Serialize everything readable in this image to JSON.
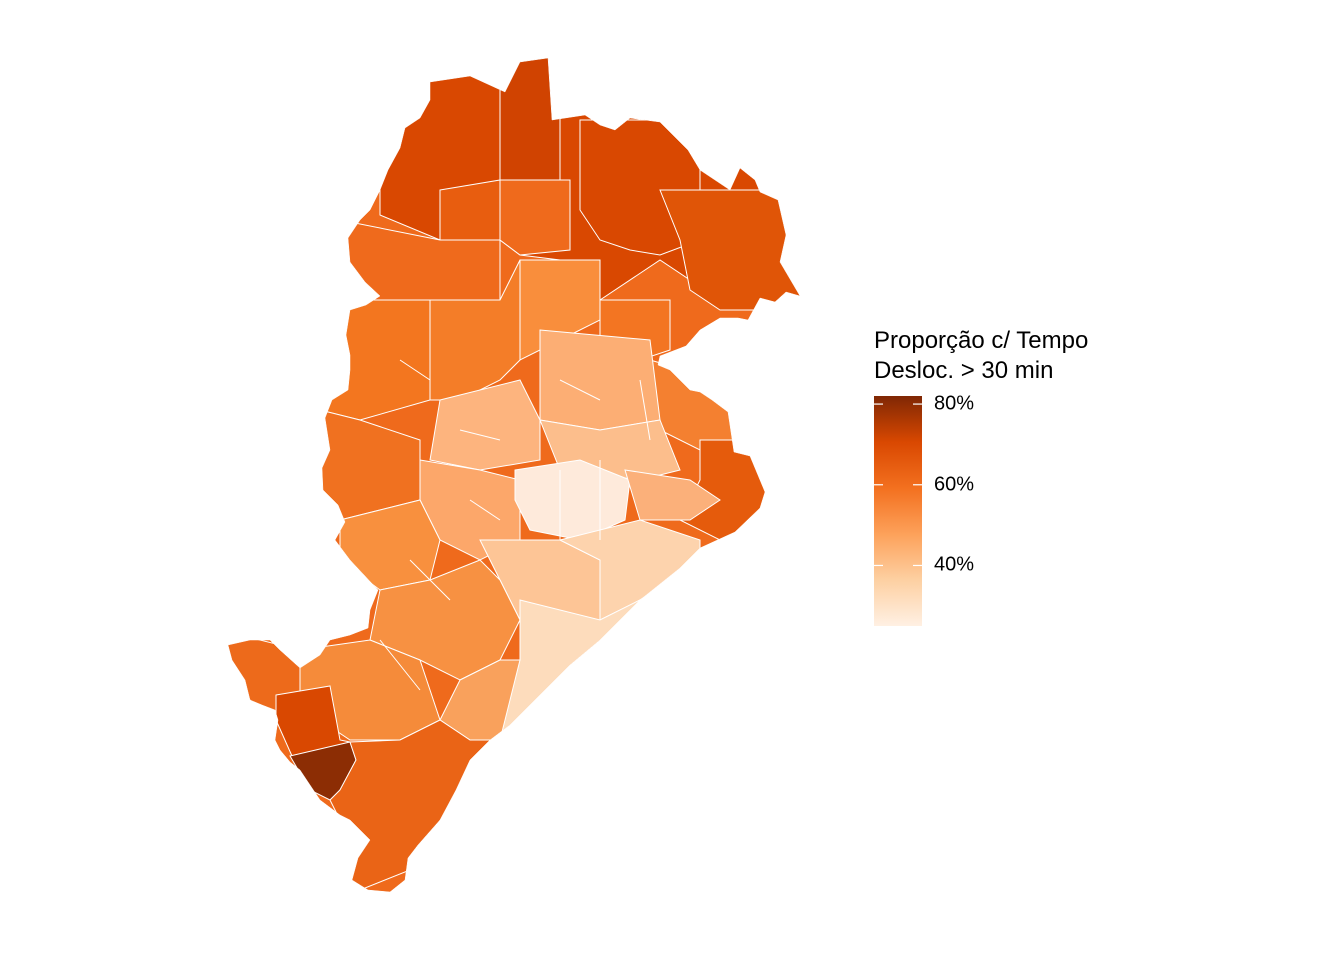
{
  "legend": {
    "title_line1": "Proporção c/ Tempo",
    "title_line2": "Desloc. > 30 min",
    "ticks": [
      {
        "label": "80%",
        "value": 80
      },
      {
        "label": "60%",
        "value": 60
      },
      {
        "label": "40%",
        "value": 40
      }
    ],
    "scale_min": 25,
    "scale_max": 82,
    "colors": [
      "#fff0e3",
      "#fdd0a2",
      "#fda15a",
      "#f3701f",
      "#d94801",
      "#7f2704"
    ]
  },
  "map": {
    "fill_low": "#fdebd7",
    "fill_mid": "#f98e3c",
    "fill_high": "#d94801",
    "fill_max": "#8c2d04",
    "border_color": "#ffffff"
  }
}
